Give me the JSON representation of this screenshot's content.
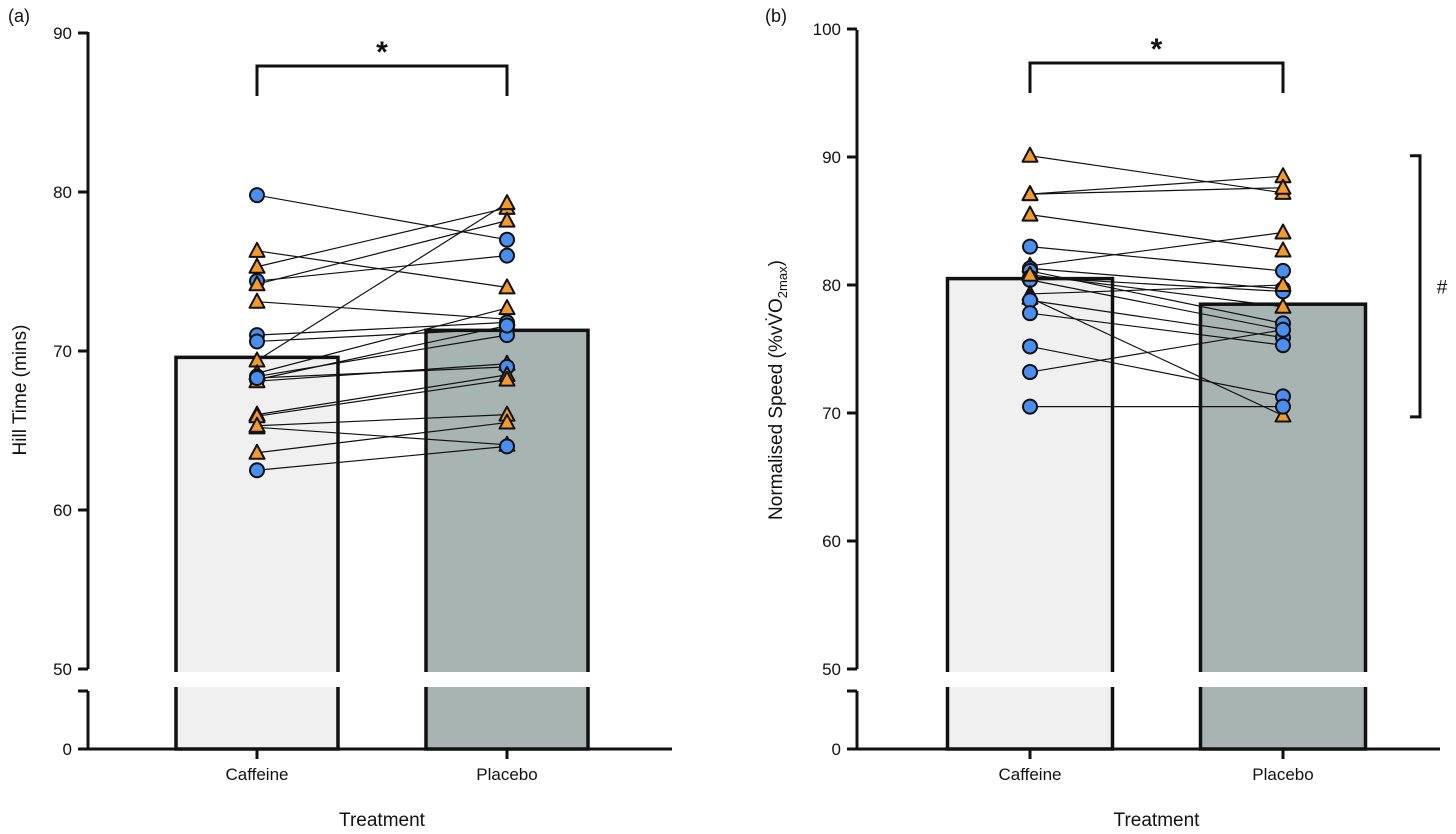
{
  "chart_data": [
    {
      "type": "bar",
      "panel_label": "(a)",
      "title": "",
      "xlabel": "Treatment",
      "ylabel": "Hill Time (mins)",
      "ylabel_parts": [
        "Hill Time (mins)"
      ],
      "categories": [
        "Caffeine",
        "Placebo"
      ],
      "values": [
        69.6,
        71.3
      ],
      "yticks": [
        0,
        50,
        60,
        70,
        80,
        90
      ],
      "ylim": [
        50,
        90
      ],
      "axis_break": [
        0,
        50
      ],
      "significance": "*",
      "side_annotation": "",
      "bar_colors": [
        "#eff0ef",
        "#a8b4b2"
      ],
      "marker_colors": {
        "circle": "#4a8ef0",
        "triangle": "#f39a2b"
      },
      "paired_points": [
        {
          "marker": "circle",
          "caffeine": 79.8,
          "placebo": 77.0
        },
        {
          "marker": "triangle",
          "caffeine": 76.3,
          "placebo": 74.0
        },
        {
          "marker": "triangle",
          "caffeine": 75.3,
          "placebo": 79.0
        },
        {
          "marker": "circle",
          "caffeine": 74.4,
          "placebo": 76.0
        },
        {
          "marker": "triangle",
          "caffeine": 74.2,
          "placebo": 78.2
        },
        {
          "marker": "triangle",
          "caffeine": 73.1,
          "placebo": 72.0
        },
        {
          "marker": "circle",
          "caffeine": 71.0,
          "placebo": 71.8
        },
        {
          "marker": "circle",
          "caffeine": 70.6,
          "placebo": 71.4
        },
        {
          "marker": "triangle",
          "caffeine": 69.4,
          "placebo": 79.3
        },
        {
          "marker": "triangle",
          "caffeine": 68.6,
          "placebo": 72.7
        },
        {
          "marker": "circle",
          "caffeine": 68.4,
          "placebo": 71.0
        },
        {
          "marker": "circle",
          "caffeine": 68.2,
          "placebo": 71.6
        },
        {
          "marker": "triangle",
          "caffeine": 68.1,
          "placebo": 69.2
        },
        {
          "marker": "circle",
          "caffeine": 68.3,
          "placebo": 69.0
        },
        {
          "marker": "triangle",
          "caffeine": 66.0,
          "placebo": 68.5
        },
        {
          "marker": "triangle",
          "caffeine": 65.9,
          "placebo": 68.2
        },
        {
          "marker": "triangle",
          "caffeine": 65.2,
          "placebo": 64.1
        },
        {
          "marker": "triangle",
          "caffeine": 65.3,
          "placebo": 66.0
        },
        {
          "marker": "triangle",
          "caffeine": 63.6,
          "placebo": 65.5
        },
        {
          "marker": "circle",
          "caffeine": 62.5,
          "placebo": 64.0
        }
      ]
    },
    {
      "type": "bar",
      "panel_label": "(b)",
      "title": "",
      "xlabel": "Treatment",
      "ylabel": "Normalised Speed (%vVO2max)",
      "ylabel_parts": [
        "Normalised Speed (%v",
        "V̇O",
        "2max",
        ")"
      ],
      "categories": [
        "Caffeine",
        "Placebo"
      ],
      "values": [
        80.5,
        78.5
      ],
      "yticks": [
        0,
        50,
        60,
        70,
        80,
        90,
        100
      ],
      "ylim": [
        50,
        100
      ],
      "axis_break": [
        0,
        50
      ],
      "significance": "*",
      "side_annotation": "#",
      "side_annotation_range": [
        69.7,
        90.1
      ],
      "bar_colors": [
        "#eff0ef",
        "#a8b4b2"
      ],
      "marker_colors": {
        "circle": "#4a8ef0",
        "triangle": "#f39a2b"
      },
      "paired_points": [
        {
          "marker": "triangle",
          "caffeine": 90.1,
          "placebo": 87.2
        },
        {
          "marker": "triangle",
          "caffeine": 87.1,
          "placebo": 88.5
        },
        {
          "marker": "triangle",
          "caffeine": 87.1,
          "placebo": 87.6
        },
        {
          "marker": "triangle",
          "caffeine": 85.5,
          "placebo": 82.7
        },
        {
          "marker": "circle",
          "caffeine": 83.0,
          "placebo": 81.1
        },
        {
          "marker": "triangle",
          "caffeine": 81.5,
          "placebo": 84.1
        },
        {
          "marker": "circle",
          "caffeine": 81.3,
          "placebo": 79.7
        },
        {
          "marker": "circle",
          "caffeine": 81.1,
          "placebo": 77.0
        },
        {
          "marker": "circle",
          "caffeine": 80.6,
          "placebo": 79.5
        },
        {
          "marker": "circle",
          "caffeine": 80.4,
          "placebo": 76.5
        },
        {
          "marker": "triangle",
          "caffeine": 80.8,
          "placebo": 78.3
        },
        {
          "marker": "triangle",
          "caffeine": 79.3,
          "placebo": 80.0
        },
        {
          "marker": "triangle",
          "caffeine": 79.0,
          "placebo": 69.8
        },
        {
          "marker": "circle",
          "caffeine": 78.8,
          "placebo": 75.9
        },
        {
          "marker": "circle",
          "caffeine": 77.8,
          "placebo": 75.3
        },
        {
          "marker": "circle",
          "caffeine": 75.2,
          "placebo": 71.3
        },
        {
          "marker": "circle",
          "caffeine": 73.2,
          "placebo": 76.5
        },
        {
          "marker": "circle",
          "caffeine": 70.5,
          "placebo": 70.5
        }
      ]
    }
  ]
}
